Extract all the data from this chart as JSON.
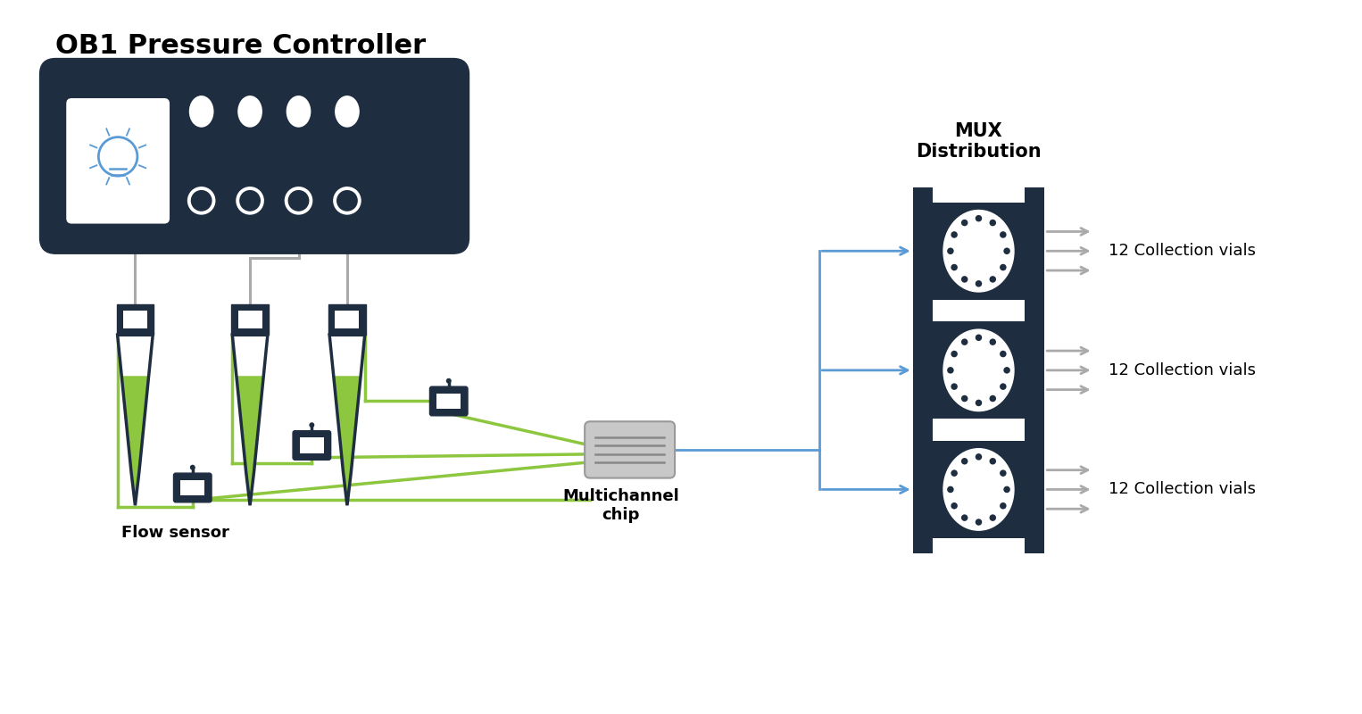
{
  "bg_color": "#ffffff",
  "title": "OB1 Pressure Controller",
  "title_fontsize": 22,
  "title_fontweight": "bold",
  "dark_navy": "#1e2d40",
  "green_line": "#8dc63f",
  "gray_line": "#aaaaaa",
  "blue_arrow": "#5b9bd5",
  "white": "#ffffff",
  "light_gray": "#cccccc",
  "mux_label": "MUX\nDistribution",
  "collection_label": "12 Collection vials",
  "flow_sensor_label": "Flow sensor",
  "chip_label": "Multichannel\nchip"
}
